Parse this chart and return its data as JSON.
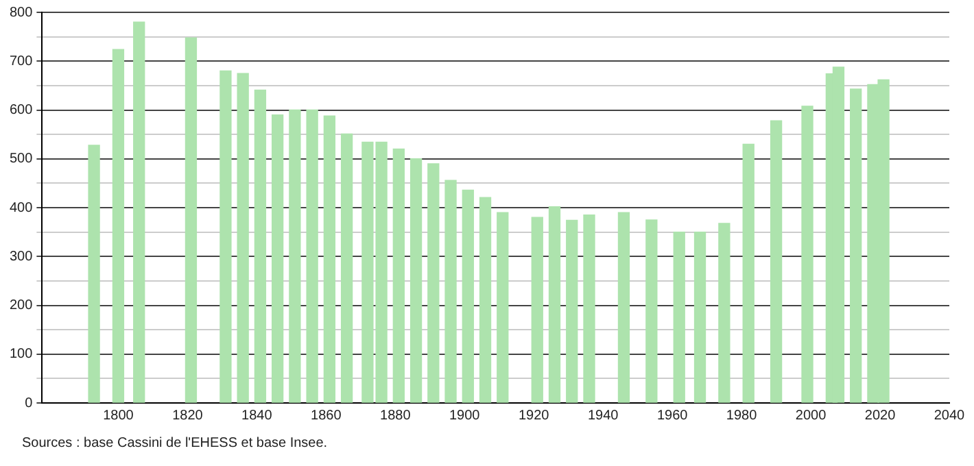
{
  "chart_data": {
    "type": "bar",
    "x": [
      1793,
      1800,
      1806,
      1821,
      1831,
      1836,
      1841,
      1846,
      1851,
      1856,
      1861,
      1866,
      1872,
      1876,
      1881,
      1886,
      1891,
      1896,
      1901,
      1906,
      1911,
      1921,
      1926,
      1931,
      1936,
      1946,
      1954,
      1962,
      1968,
      1975,
      1982,
      1990,
      1999,
      2006,
      2008,
      2013,
      2018,
      2021
    ],
    "values": [
      528,
      724,
      780,
      748,
      680,
      675,
      641,
      590,
      600,
      600,
      588,
      551,
      534,
      534,
      520,
      500,
      490,
      456,
      436,
      421,
      390,
      380,
      402,
      374,
      385,
      390,
      375,
      350,
      350,
      368,
      530,
      578,
      608,
      674,
      688,
      643,
      652,
      662
    ],
    "color": "#ade3ad",
    "xlim": [
      1778,
      2040
    ],
    "xticks": [
      1800,
      1820,
      1840,
      1860,
      1880,
      1900,
      1920,
      1940,
      1960,
      1980,
      2000,
      2020,
      2040
    ],
    "ylim": [
      0,
      800
    ],
    "yticks": [
      0,
      {
        "value": 50,
        "label": null
      },
      100,
      {
        "value": 150,
        "label": null
      },
      200,
      {
        "value": 250,
        "label": null
      },
      300,
      {
        "value": 350,
        "label": null
      },
      400,
      {
        "value": 450,
        "label": null
      },
      500,
      {
        "value": 550,
        "label": null
      },
      600,
      {
        "value": 650,
        "label": null
      },
      700,
      {
        "value": 750,
        "label": null
      },
      800
    ],
    "grid": "y",
    "annotations": [
      "Sources : base Cassini de l'EHESS et base Insee."
    ]
  }
}
